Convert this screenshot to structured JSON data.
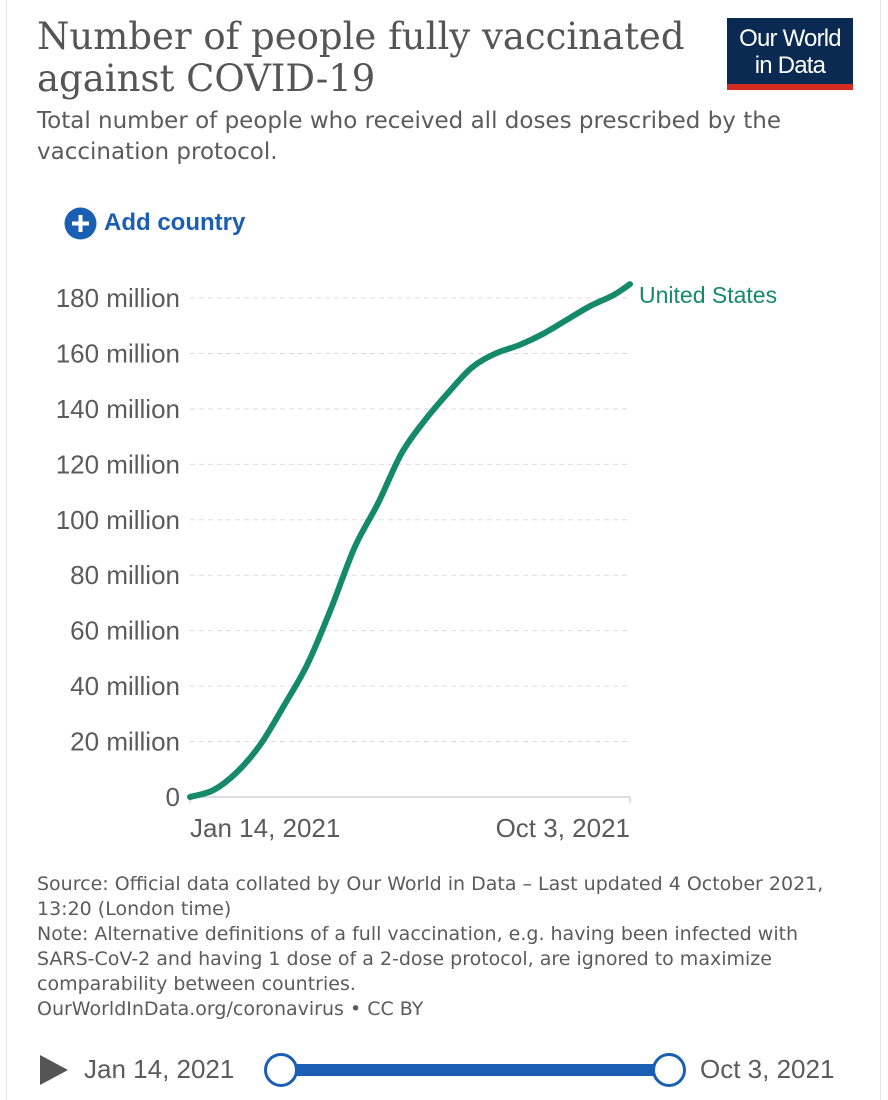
{
  "header": {
    "title": "Number of people fully vaccinated against COVID-19",
    "subtitle": "Total number of people who received all doses prescribed by the vaccination protocol.",
    "logo_line1": "Our World",
    "logo_line2": "in Data"
  },
  "controls": {
    "add_country_label": "Add country"
  },
  "colors": {
    "series": "#158a6b",
    "accent_blue": "#1a5fb4",
    "logo_bg": "#0b2a52",
    "logo_bar": "#d42b21",
    "grid": "#dddddd"
  },
  "chart_data": {
    "type": "line",
    "xlabel": "",
    "ylabel": "",
    "x_ticks": [
      "Jan 14, 2021",
      "Oct 3, 2021"
    ],
    "y_ticks": [
      {
        "value": 0,
        "label": "0"
      },
      {
        "value": 20000000,
        "label": "20 million"
      },
      {
        "value": 40000000,
        "label": "40 million"
      },
      {
        "value": 60000000,
        "label": "60 million"
      },
      {
        "value": 80000000,
        "label": "80 million"
      },
      {
        "value": 100000000,
        "label": "100 million"
      },
      {
        "value": 120000000,
        "label": "120 million"
      },
      {
        "value": 140000000,
        "label": "140 million"
      },
      {
        "value": 160000000,
        "label": "160 million"
      },
      {
        "value": 180000000,
        "label": "180 million"
      }
    ],
    "ylim": [
      0,
      180000000
    ],
    "xlim": [
      "2021-01-14",
      "2021-10-03"
    ],
    "grid": true,
    "series": [
      {
        "name": "United States",
        "color": "#158a6b",
        "points": [
          {
            "x": "2021-01-14",
            "y": 0
          },
          {
            "x": "2021-01-28",
            "y": 2500000
          },
          {
            "x": "2021-02-11",
            "y": 9000000
          },
          {
            "x": "2021-02-25",
            "y": 19000000
          },
          {
            "x": "2021-03-11",
            "y": 33000000
          },
          {
            "x": "2021-03-25",
            "y": 48000000
          },
          {
            "x": "2021-04-08",
            "y": 68000000
          },
          {
            "x": "2021-04-22",
            "y": 90000000
          },
          {
            "x": "2021-05-06",
            "y": 106000000
          },
          {
            "x": "2021-05-20",
            "y": 124000000
          },
          {
            "x": "2021-06-03",
            "y": 136000000
          },
          {
            "x": "2021-06-17",
            "y": 146000000
          },
          {
            "x": "2021-07-01",
            "y": 155000000
          },
          {
            "x": "2021-07-15",
            "y": 160000000
          },
          {
            "x": "2021-07-29",
            "y": 163000000
          },
          {
            "x": "2021-08-12",
            "y": 167000000
          },
          {
            "x": "2021-08-26",
            "y": 172000000
          },
          {
            "x": "2021-09-09",
            "y": 177000000
          },
          {
            "x": "2021-09-23",
            "y": 181000000
          },
          {
            "x": "2021-10-03",
            "y": 185000000
          }
        ]
      }
    ]
  },
  "footer": {
    "source": "Source: Official data collated by Our World in Data – Last updated 4 October 2021, 13:20 (London time)",
    "note": "Note: Alternative definitions of a full vaccination, e.g. having been infected with SARS-CoV-2 and having 1 dose of a 2-dose protocol, are ignored to maximize comparability between countries.",
    "credit": "OurWorldInData.org/coronavirus • CC BY"
  },
  "timeline": {
    "start_label": "Jan 14, 2021",
    "end_label": "Oct 3, 2021"
  }
}
